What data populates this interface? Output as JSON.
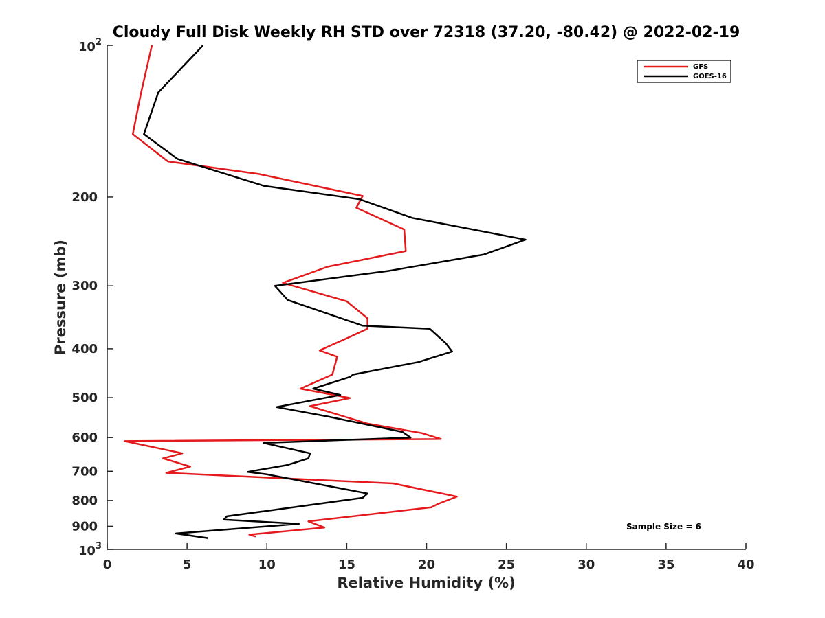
{
  "chart_data": {
    "type": "line",
    "title": "Cloudy Full Disk Weekly RH STD over 72318 (37.20, -80.42) @ 2022-02-19",
    "xlabel": "Relative Humidity (%)",
    "ylabel": "Pressure (mb)",
    "xlim": [
      0,
      40
    ],
    "ylim": [
      100,
      1000
    ],
    "yscale": "log",
    "y_reversed": true,
    "x_ticks": [
      0,
      5,
      10,
      15,
      20,
      25,
      30,
      35,
      40
    ],
    "x_tick_labels": [
      "0",
      "5",
      "10",
      "15",
      "20",
      "25",
      "30",
      "35",
      "40"
    ],
    "y_ticks": [
      200,
      300,
      400,
      500,
      600,
      700,
      800,
      900
    ],
    "y_tick_labels": [
      "200",
      "300",
      "400",
      "500",
      "600",
      "700",
      "800",
      "900"
    ],
    "y_limit_labels": [
      {
        "value": 100,
        "base": "10",
        "exp": "2"
      },
      {
        "value": 1000,
        "base": "10",
        "exp": "3"
      }
    ],
    "legend_position": "top-right",
    "annotation": "Sample Size = 6",
    "series": [
      {
        "name": "GFS",
        "color": "#e41a1c",
        "points": [
          [
            2.8,
            100
          ],
          [
            2.1,
            125
          ],
          [
            1.6,
            150
          ],
          [
            3.8,
            170
          ],
          [
            9.5,
            180
          ],
          [
            16.0,
            199
          ],
          [
            15.6,
            210
          ],
          [
            18.6,
            232
          ],
          [
            18.7,
            256
          ],
          [
            13.8,
            275
          ],
          [
            11.0,
            296
          ],
          [
            15.0,
            322
          ],
          [
            16.3,
            348
          ],
          [
            16.3,
            365
          ],
          [
            15.1,
            380
          ],
          [
            13.3,
            403
          ],
          [
            14.4,
            415
          ],
          [
            14.1,
            450
          ],
          [
            12.1,
            480
          ],
          [
            15.2,
            501
          ],
          [
            12.7,
            520
          ],
          [
            16.3,
            563
          ],
          [
            19.7,
            588
          ],
          [
            20.9,
            604
          ],
          [
            1.1,
            610
          ],
          [
            4.7,
            645
          ],
          [
            3.5,
            660
          ],
          [
            5.2,
            685
          ],
          [
            3.7,
            705
          ],
          [
            17.9,
            740
          ],
          [
            21.9,
            786
          ],
          [
            20.7,
            813
          ],
          [
            20.3,
            825
          ],
          [
            12.6,
            880
          ],
          [
            13.6,
            905
          ],
          [
            8.9,
            935
          ],
          [
            9.3,
            943
          ]
        ]
      },
      {
        "name": "GOES-16",
        "color": "#000000",
        "points": [
          [
            6.0,
            100
          ],
          [
            3.2,
            124
          ],
          [
            2.3,
            150
          ],
          [
            4.4,
            168
          ],
          [
            9.8,
            190
          ],
          [
            15.8,
            202
          ],
          [
            19.1,
            220
          ],
          [
            26.2,
            243
          ],
          [
            23.6,
            260
          ],
          [
            17.7,
            280
          ],
          [
            10.5,
            300
          ],
          [
            11.3,
            320
          ],
          [
            16.0,
            360
          ],
          [
            20.2,
            365
          ],
          [
            21.2,
            390
          ],
          [
            21.6,
            405
          ],
          [
            19.5,
            425
          ],
          [
            15.4,
            450
          ],
          [
            15.2,
            455
          ],
          [
            12.9,
            480
          ],
          [
            14.6,
            494
          ],
          [
            10.6,
            522
          ],
          [
            13.8,
            545
          ],
          [
            18.5,
            585
          ],
          [
            19.0,
            600
          ],
          [
            9.8,
            615
          ],
          [
            12.7,
            645
          ],
          [
            12.6,
            660
          ],
          [
            11.3,
            680
          ],
          [
            8.8,
            702
          ],
          [
            10.0,
            710
          ],
          [
            16.3,
            775
          ],
          [
            16.0,
            790
          ],
          [
            7.5,
            860
          ],
          [
            7.3,
            873
          ],
          [
            12.0,
            890
          ],
          [
            4.3,
            930
          ],
          [
            6.3,
            950
          ]
        ]
      }
    ]
  }
}
